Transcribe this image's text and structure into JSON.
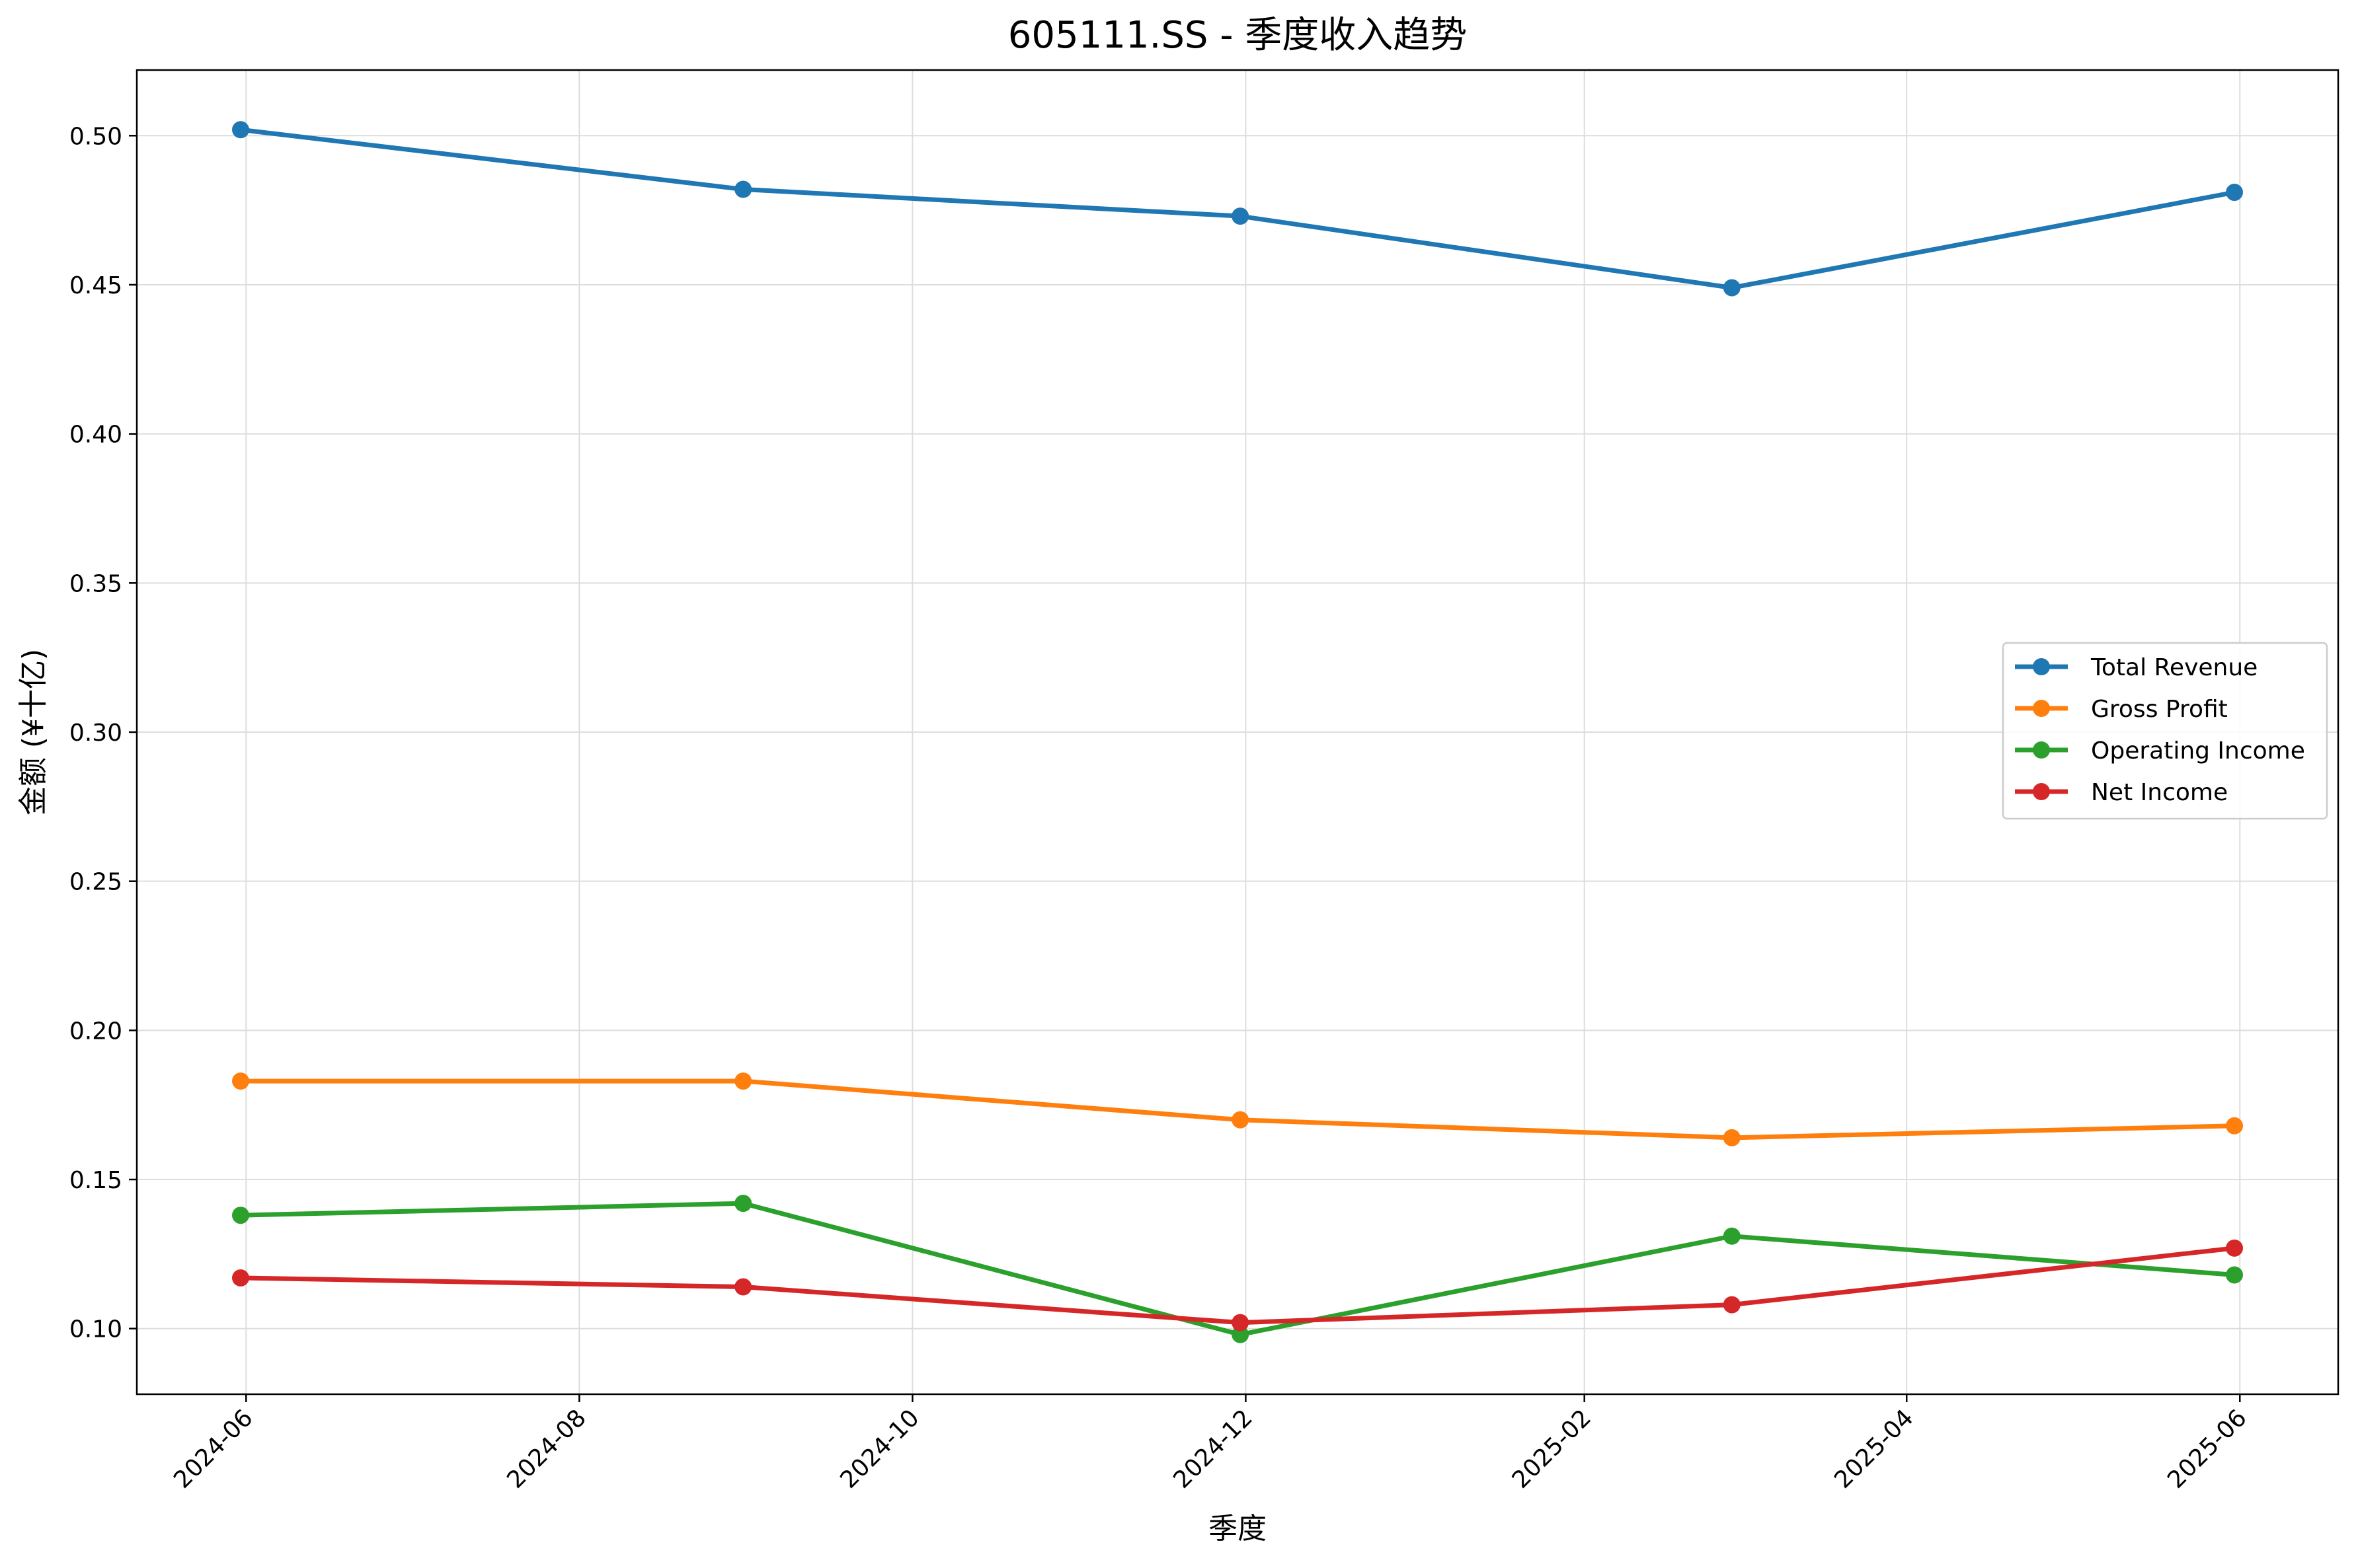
{
  "chart_data": {
    "type": "line",
    "title": "605111.SS - 季度收入趋势",
    "xlabel": "季度",
    "ylabel": "金额 (¥十亿)",
    "x": [
      "2024-05-31",
      "2024-08-31",
      "2024-11-30",
      "2025-02-28",
      "2025-05-31"
    ],
    "xlim": [
      "2024-05-12",
      "2025-06-19"
    ],
    "ylim": [
      0.078,
      0.522
    ],
    "x_ticks": [
      {
        "date": "2024-06-01",
        "label": "2024-06"
      },
      {
        "date": "2024-08-01",
        "label": "2024-08"
      },
      {
        "date": "2024-10-01",
        "label": "2024-10"
      },
      {
        "date": "2024-12-01",
        "label": "2024-12"
      },
      {
        "date": "2025-02-01",
        "label": "2025-02"
      },
      {
        "date": "2025-04-01",
        "label": "2025-04"
      },
      {
        "date": "2025-06-01",
        "label": "2025-06"
      }
    ],
    "y_ticks": [
      {
        "value": 0.1,
        "label": "0.10"
      },
      {
        "value": 0.15,
        "label": "0.15"
      },
      {
        "value": 0.2,
        "label": "0.20"
      },
      {
        "value": 0.25,
        "label": "0.25"
      },
      {
        "value": 0.3,
        "label": "0.30"
      },
      {
        "value": 0.35,
        "label": "0.35"
      },
      {
        "value": 0.4,
        "label": "0.40"
      },
      {
        "value": 0.45,
        "label": "0.45"
      },
      {
        "value": 0.5,
        "label": "0.50"
      }
    ],
    "grid": true,
    "legend_position": "center-right",
    "series": [
      {
        "name": "Total Revenue",
        "color": "#1f77b4",
        "values": [
          0.502,
          0.482,
          0.473,
          0.449,
          0.481
        ]
      },
      {
        "name": "Gross Profit",
        "color": "#ff7f0e",
        "values": [
          0.183,
          0.183,
          0.17,
          0.164,
          0.168
        ]
      },
      {
        "name": "Operating Income",
        "color": "#2ca02c",
        "values": [
          0.138,
          0.142,
          0.098,
          0.131,
          0.118
        ]
      },
      {
        "name": "Net Income",
        "color": "#d62728",
        "values": [
          0.117,
          0.114,
          0.102,
          0.108,
          0.127
        ]
      }
    ]
  }
}
